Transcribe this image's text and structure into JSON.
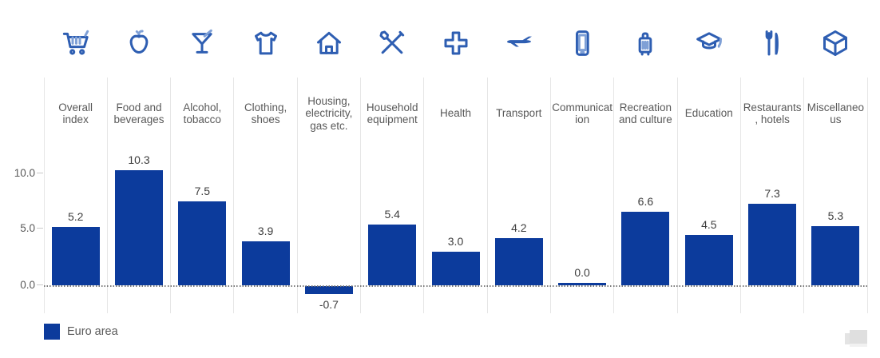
{
  "chart_data": {
    "type": "bar",
    "title": "",
    "categories": [
      "Overall index",
      "Food and beverages",
      "Alcohol, tobacco",
      "Clothing, shoes",
      "Housing, electricity, gas etc.",
      "Household equipment",
      "Health",
      "Transport",
      "Communication",
      "Recreation and culture",
      "Education",
      "Restaurants, hotels",
      "Miscellaneous"
    ],
    "icons": [
      "shopping-cart-icon",
      "apple-icon",
      "cocktail-icon",
      "tshirt-icon",
      "house-icon",
      "tools-icon",
      "health-cross-icon",
      "airplane-icon",
      "mobile-phone-icon",
      "luggage-icon",
      "graduation-cap-icon",
      "fork-knife-icon",
      "cube-icon"
    ],
    "series": [
      {
        "name": "Euro area",
        "values": [
          5.2,
          10.3,
          7.5,
          3.9,
          -0.7,
          5.4,
          3.0,
          4.2,
          0.0,
          6.6,
          4.5,
          7.3,
          5.3
        ]
      }
    ],
    "value_labels": [
      "5.2",
      "10.3",
      "7.5",
      "3.9",
      "-0.7",
      "5.4",
      "3.0",
      "4.2",
      "0.0",
      "6.6",
      "4.5",
      "7.3",
      "5.3"
    ],
    "yticks": [
      "10.0",
      "5.0",
      "0.0"
    ],
    "ytick_values": [
      10,
      5,
      0
    ],
    "ylim": [
      -2.5,
      13.5
    ],
    "grid": "no horizontal gridlines; dashed zero line; light vertical category separators",
    "legend": {
      "position": "bottom-left",
      "entries": [
        {
          "label": "Euro area",
          "color": "#0c3b9c"
        }
      ]
    }
  },
  "colors": {
    "bar": "#0c3b9c",
    "icon_primary": "#2e5eb2",
    "icon_accent": "#7fa0d6",
    "axis_text": "#595959",
    "value_text": "#3d3d3d",
    "separator": "#e6e6e6",
    "zero_line": "#7a7a7a",
    "watermark": "#dfdfdf"
  }
}
